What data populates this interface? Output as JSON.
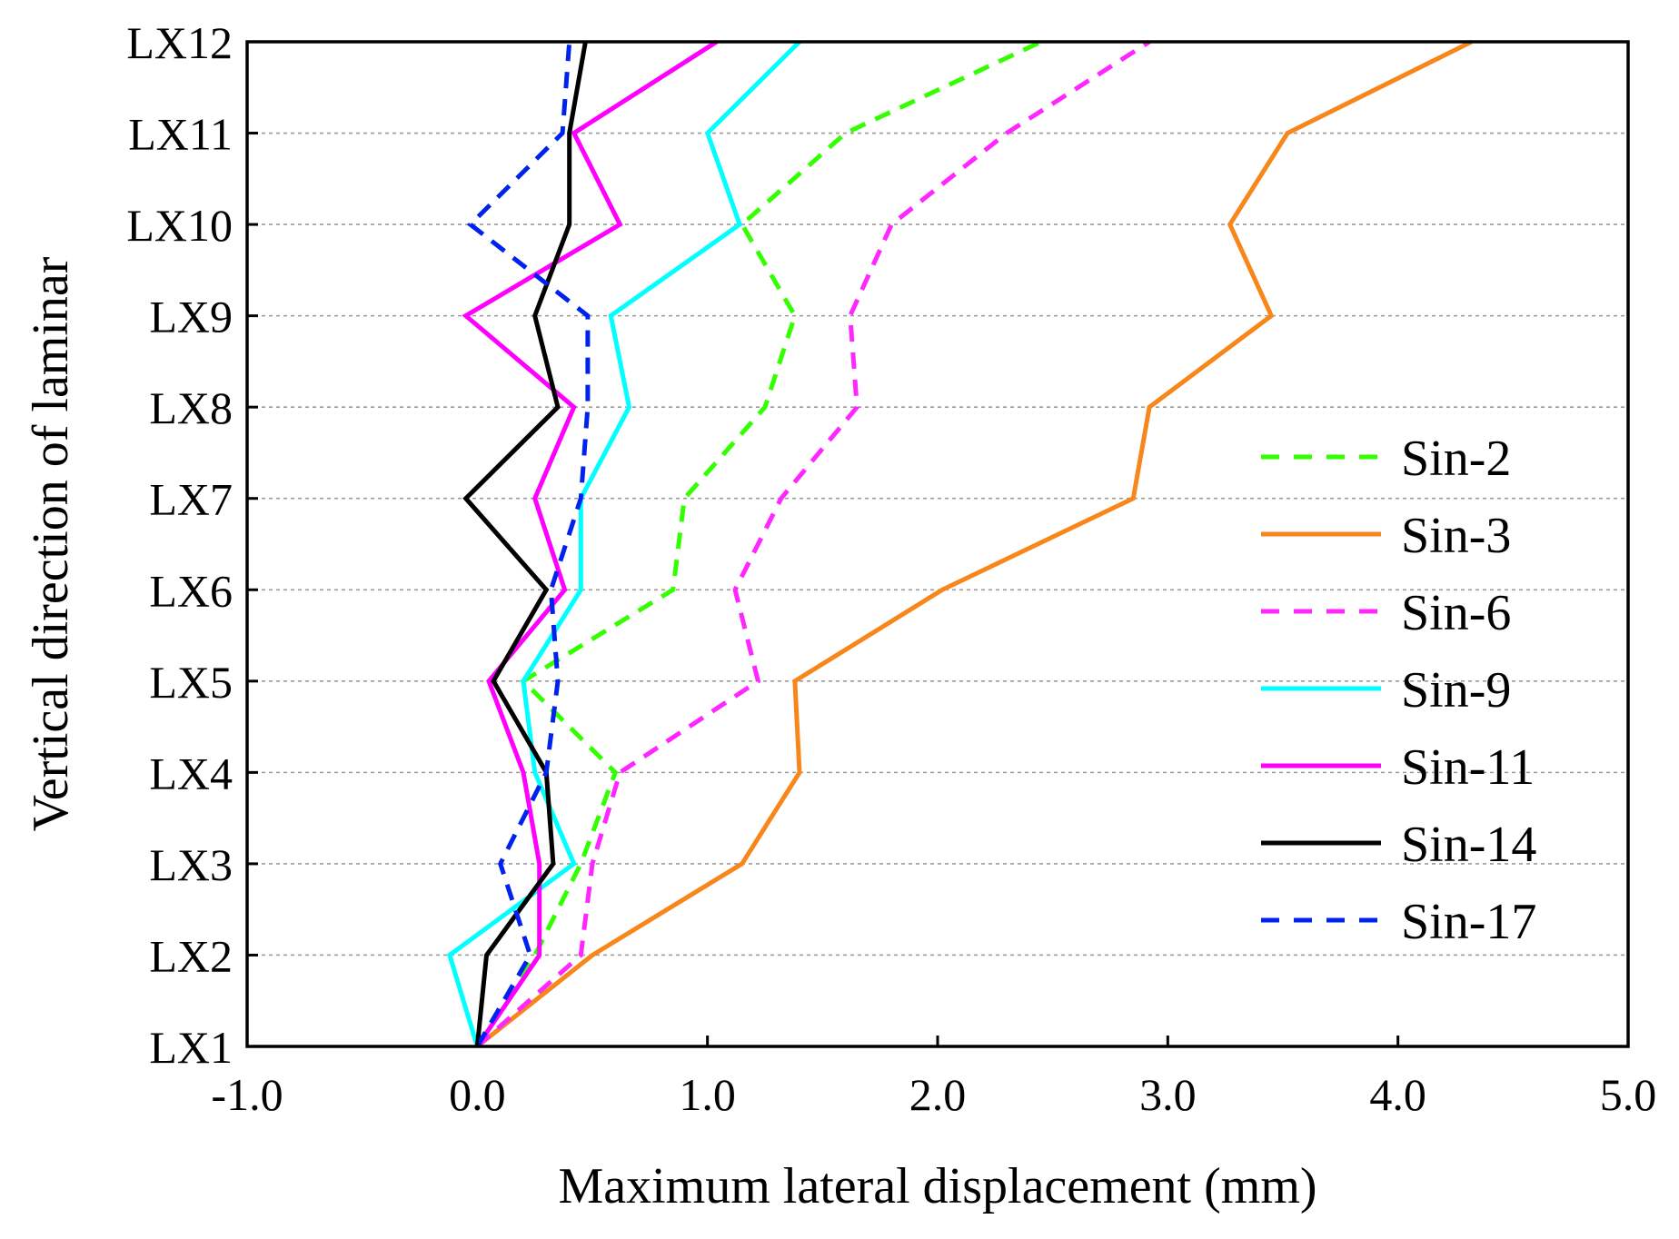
{
  "chart_data": {
    "type": "line",
    "title": "",
    "xlabel": "Maximum lateral displacement (mm)",
    "ylabel": "Vertical direction of laminar",
    "xlim": [
      -1.0,
      5.0
    ],
    "x_ticks": [
      "-1.0",
      "0.0",
      "1.0",
      "2.0",
      "3.0",
      "4.0",
      "5.0"
    ],
    "x_tick_values": [
      -1,
      0,
      1,
      2,
      3,
      4,
      5
    ],
    "categories": [
      "LX1",
      "LX2",
      "LX3",
      "LX4",
      "LX5",
      "LX6",
      "LX7",
      "LX8",
      "LX9",
      "LX10",
      "LX11",
      "LX12"
    ],
    "grid": "horizontal dashed",
    "legend_position": "right",
    "series": [
      {
        "name": "Sin-2",
        "color": "#33ff00",
        "style": "dashed",
        "values": [
          0.0,
          0.25,
          0.45,
          0.6,
          0.2,
          0.85,
          0.9,
          1.25,
          1.38,
          1.15,
          1.6,
          2.45
        ]
      },
      {
        "name": "Sin-3",
        "color": "#f7861b",
        "style": "solid",
        "values": [
          0.0,
          0.5,
          1.15,
          1.4,
          1.38,
          2.02,
          2.85,
          2.92,
          3.45,
          3.27,
          3.52,
          4.32
        ]
      },
      {
        "name": "Sin-6",
        "color": "#ff26ff",
        "style": "dashed",
        "values": [
          0.0,
          0.45,
          0.5,
          0.62,
          1.22,
          1.12,
          1.32,
          1.65,
          1.62,
          1.8,
          2.3,
          2.92
        ]
      },
      {
        "name": "Sin-9",
        "color": "#00ffff",
        "style": "solid",
        "values": [
          0.0,
          -0.12,
          0.42,
          0.25,
          0.2,
          0.45,
          0.45,
          0.66,
          0.58,
          1.14,
          1.0,
          1.4
        ]
      },
      {
        "name": "Sin-11",
        "color": "#ff00ff",
        "style": "solid",
        "values": [
          0.0,
          0.27,
          0.27,
          0.2,
          0.05,
          0.38,
          0.25,
          0.42,
          -0.05,
          0.62,
          0.42,
          1.04
        ]
      },
      {
        "name": "Sin-14",
        "color": "#000000",
        "style": "solid",
        "values": [
          0.0,
          0.04,
          0.33,
          0.3,
          0.07,
          0.3,
          -0.05,
          0.35,
          0.25,
          0.4,
          0.4,
          0.47
        ]
      },
      {
        "name": "Sin-17",
        "color": "#0022ee",
        "style": "dashed",
        "values": [
          0.0,
          0.23,
          0.1,
          0.3,
          0.35,
          0.32,
          0.45,
          0.48,
          0.48,
          -0.03,
          0.37,
          0.4
        ]
      }
    ]
  }
}
